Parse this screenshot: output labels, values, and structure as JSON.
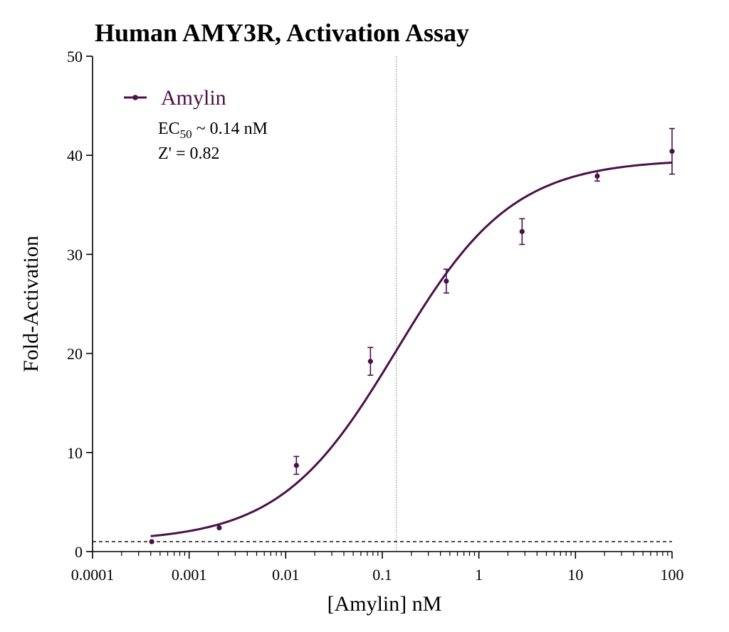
{
  "chart_data": {
    "type": "scatter",
    "title": "Human AMY3R, Activation Assay",
    "xlabel": "[Amylin] nM",
    "ylabel": "Fold-Activation",
    "x_scale": "log",
    "xlim": [
      0.0001,
      100
    ],
    "ylim": [
      0,
      50
    ],
    "x_ticks": [
      0.0001,
      0.001,
      0.01,
      0.1,
      1,
      10,
      100
    ],
    "x_tick_labels": [
      "0.0001",
      "0.001",
      "0.01",
      "0.1",
      "1",
      "10",
      "100"
    ],
    "y_ticks": [
      0,
      10,
      20,
      30,
      40,
      50
    ],
    "y_tick_labels": [
      "0",
      "10",
      "20",
      "30",
      "40",
      "50"
    ],
    "grid": false,
    "legend_position": "top-left",
    "colors": {
      "series": "#4a1048"
    },
    "series": [
      {
        "name": "Amylin",
        "points": [
          {
            "x": 0.00041,
            "y": 1.0,
            "err": 0
          },
          {
            "x": 0.00205,
            "y": 2.4,
            "err": 0
          },
          {
            "x": 0.0129,
            "y": 8.7,
            "err": 0.9
          },
          {
            "x": 0.0754,
            "y": 19.2,
            "err": 1.4
          },
          {
            "x": 0.46,
            "y": 27.3,
            "err": 1.2
          },
          {
            "x": 2.8,
            "y": 32.3,
            "err": 1.3
          },
          {
            "x": 16.8,
            "y": 37.9,
            "err": 0.5
          },
          {
            "x": 100,
            "y": 40.4,
            "err": 2.3
          }
        ],
        "fit": {
          "bottom": 1.0,
          "top": 39.6,
          "ec50": 0.14,
          "hill": 0.72,
          "x_range": [
            0.0004,
            100
          ]
        }
      }
    ],
    "reference_lines": [
      {
        "orientation": "horizontal",
        "value": 1.0,
        "style": "dashed"
      },
      {
        "orientation": "vertical",
        "value": 0.14,
        "style": "dotted"
      }
    ],
    "annotations": {
      "ec50_prefix": "EC",
      "ec50_subscript": "50",
      "ec50_suffix": " ~ 0.14 nM",
      "z_prime": "Z' = 0.82"
    }
  }
}
